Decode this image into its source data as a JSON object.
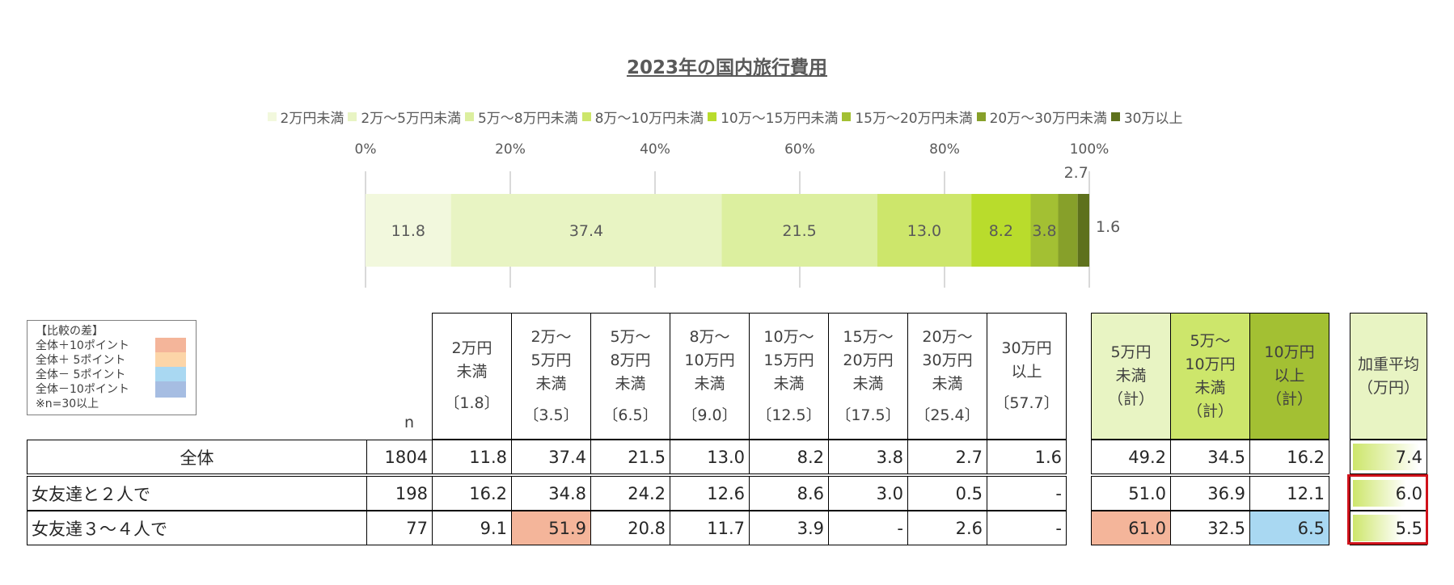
{
  "chart_data": {
    "type": "bar",
    "orientation": "horizontal",
    "stacked": true,
    "title": "2023年の国内旅行費用",
    "legend_position": "top",
    "xlim": [
      0,
      100
    ],
    "x_ticks": [
      "0%",
      "20%",
      "40%",
      "60%",
      "80%",
      "100%"
    ],
    "grid": true,
    "series": [
      {
        "name": "2万円未満",
        "value": 11.8,
        "label": "11.8",
        "color": "#f2f8dd"
      },
      {
        "name": "2万～5万円未満",
        "value": 37.4,
        "label": "37.4",
        "color": "#e8f4c3"
      },
      {
        "name": "5万～8万円未満",
        "value": 21.5,
        "label": "21.5",
        "color": "#dcef9f"
      },
      {
        "name": "8万～10万円未満",
        "value": 13.0,
        "label": "13.0",
        "color": "#cde66b"
      },
      {
        "name": "10万～15万円未満",
        "value": 8.2,
        "label": "8.2",
        "color": "#b9dc2c"
      },
      {
        "name": "15万～20万円未満",
        "value": 3.8,
        "label": "3.8",
        "color": "#a3c033"
      },
      {
        "name": "20万～30万円未満",
        "value": 2.7,
        "label": "2.7",
        "color": "#87a02a"
      },
      {
        "name": "30万以上",
        "value": 1.6,
        "label": "1.6",
        "color": "#5e711c"
      }
    ]
  },
  "table": {
    "n_label": "n",
    "columns": [
      {
        "lines": [
          "2万円",
          "未満"
        ],
        "sub": "〔1.8〕"
      },
      {
        "lines": [
          "2万～",
          "5万円",
          "未満"
        ],
        "sub": "〔3.5〕"
      },
      {
        "lines": [
          "5万～",
          "8万円",
          "未満"
        ],
        "sub": "〔6.5〕"
      },
      {
        "lines": [
          "8万～",
          "10万円",
          "未満"
        ],
        "sub": "〔9.0〕"
      },
      {
        "lines": [
          "10万～",
          "15万円",
          "未満"
        ],
        "sub": "〔12.5〕"
      },
      {
        "lines": [
          "15万～",
          "20万円",
          "未満"
        ],
        "sub": "〔17.5〕"
      },
      {
        "lines": [
          "20万～",
          "30万円",
          "未満"
        ],
        "sub": "〔25.4〕"
      },
      {
        "lines": [
          "30万円",
          "以上"
        ],
        "sub": "〔57.7〕"
      }
    ],
    "summary_columns": [
      {
        "lines": [
          "5万円",
          "未満",
          "（計）"
        ],
        "color": "#e8f4c3"
      },
      {
        "lines": [
          "5万～",
          "10万円",
          "未満",
          "（計）"
        ],
        "color": "#cde66b"
      },
      {
        "lines": [
          "10万円",
          "以上",
          "（計）"
        ],
        "color": "#a3c033"
      }
    ],
    "average_column": {
      "lines": [
        "加重平均",
        "（万円）"
      ],
      "color": "#e8f4c3"
    },
    "rows": [
      {
        "label": "全体",
        "n": "1804",
        "values": [
          "11.8",
          "37.4",
          "21.5",
          "13.0",
          "8.2",
          "3.8",
          "2.7",
          "1.6"
        ],
        "summary": [
          "49.2",
          "34.5",
          "16.2"
        ],
        "average": "7.4",
        "average_num": 7.4,
        "highlight": {}
      },
      {
        "label": "女友達と２人で",
        "n": "198",
        "values": [
          "16.2",
          "34.8",
          "24.2",
          "12.6",
          "8.6",
          "3.0",
          "0.5",
          "-"
        ],
        "summary": [
          "51.0",
          "36.9",
          "12.1"
        ],
        "average": "6.0",
        "average_num": 6.0,
        "highlight": {}
      },
      {
        "label": "女友達３～４人で",
        "n": "77",
        "values": [
          "9.1",
          "51.9",
          "20.8",
          "11.7",
          "3.9",
          "-",
          "2.6",
          "-"
        ],
        "summary": [
          "61.0",
          "32.5",
          "6.5"
        ],
        "average": "5.5",
        "average_num": 5.5,
        "highlight": {
          "v1": "#f4b59a",
          "s0": "#f4b59a",
          "s2": "#a9d8f2"
        }
      }
    ]
  },
  "diff_legend": {
    "title": "【比較の差】",
    "items": [
      {
        "label": "全体＋10ポイント",
        "color": "#f4b59a"
      },
      {
        "label": "全体＋ 5ポイント",
        "color": "#fcd5a8"
      },
      {
        "label": "全体－ 5ポイント",
        "color": "#a9d8f2"
      },
      {
        "label": "全体－10ポイント",
        "color": "#a6bde2"
      }
    ],
    "note": "※n=30以上"
  }
}
